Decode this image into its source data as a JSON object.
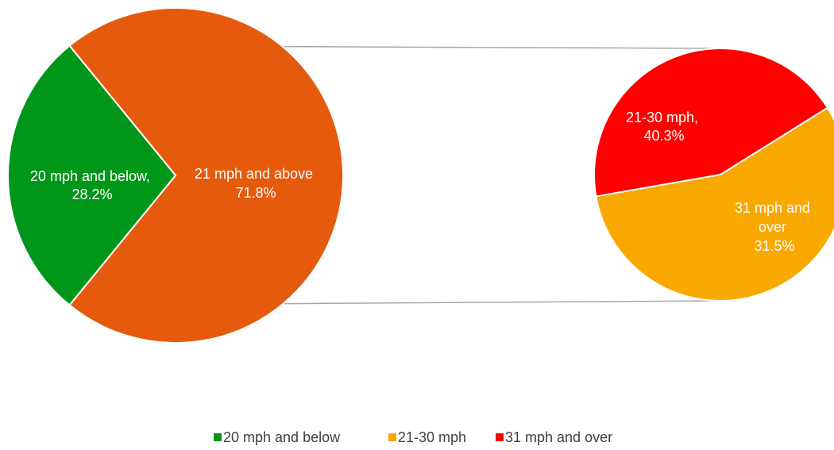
{
  "chart_data": {
    "type": "pie",
    "subtype": "pie-of-pie",
    "main_pie": {
      "slices": [
        {
          "label": "20 mph and below",
          "value": 28.2,
          "label_line1": "20 mph and below,",
          "label_line2": "28.2%",
          "color": "#00961a"
        },
        {
          "label": "21 mph and above",
          "value": 71.8,
          "label_line1": "21 mph and above",
          "label_line2": "71.8%",
          "color": "#e55a0c"
        }
      ]
    },
    "secondary_pie": {
      "breakdown_of": "21 mph and above",
      "slices": [
        {
          "label": "21-30 mph",
          "value": 40.3,
          "label_line1": "21-30 mph,",
          "label_line2": "40.3%",
          "color": "#f9a800"
        },
        {
          "label": "31 mph and over",
          "value": 31.5,
          "label_line1": "31 mph and",
          "label_line2": "over",
          "label_line3": "31.5%",
          "color": "#ff0000"
        }
      ]
    },
    "legend": {
      "placement": "bottom",
      "items": [
        {
          "label": "20 mph and below",
          "color": "#00961a"
        },
        {
          "label": "21-30 mph",
          "color": "#f9a800"
        },
        {
          "label": "31 mph and over",
          "color": "#ff0000"
        }
      ]
    },
    "connector_color": "#a6a6a6"
  }
}
